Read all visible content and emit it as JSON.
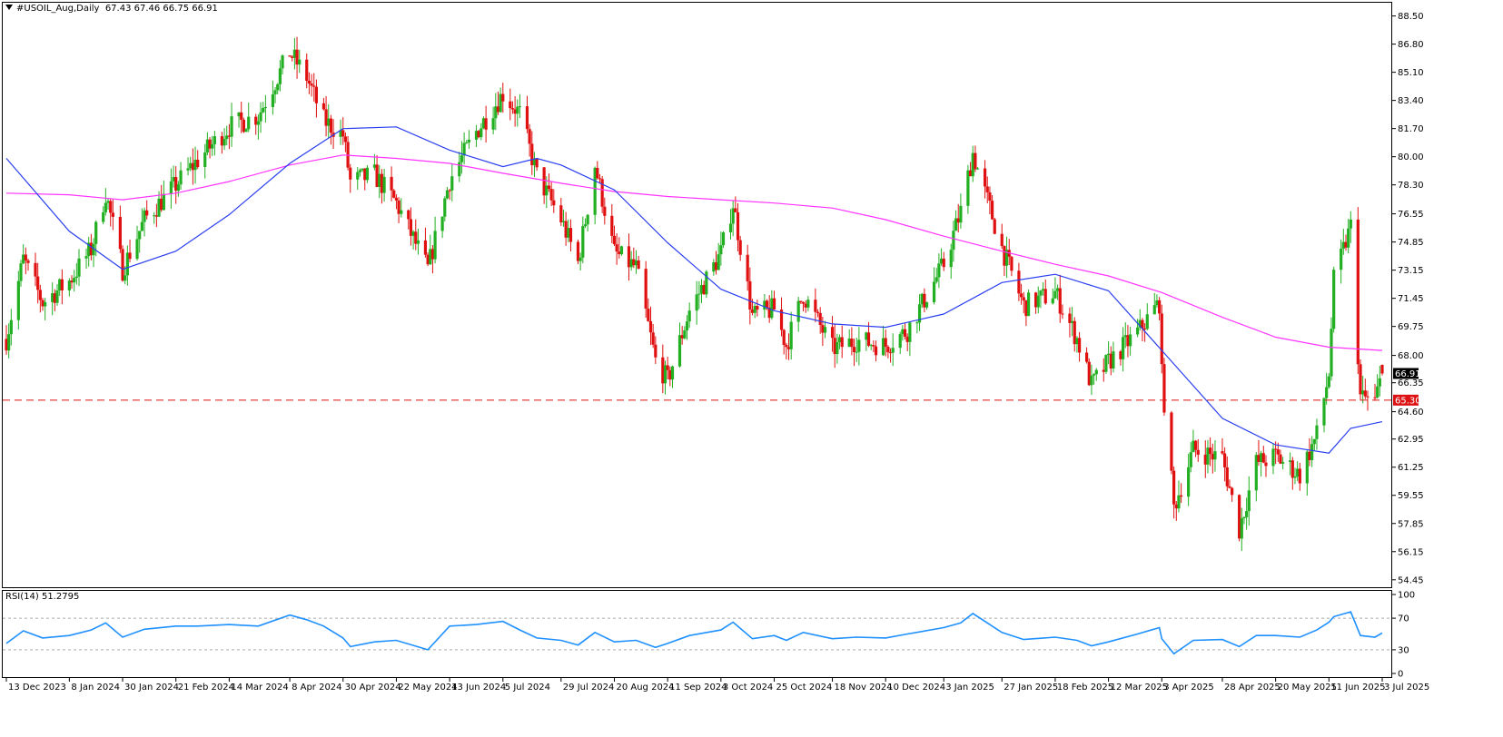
{
  "header": {
    "symbol": "#USOIL_Aug,Daily",
    "ohlc": "67.43 67.46 66.75 66.91"
  },
  "rsi_panel": {
    "label": "RSI(14) 51.2795"
  },
  "price_tags": {
    "last": "66.91",
    "level": "65.30"
  },
  "colors": {
    "bull": "#22b022",
    "bear": "#e01010",
    "ma_fast": "#2a3ff0",
    "ma_slow": "#ff33ff",
    "rsi": "#1e90ff",
    "level_line": "#dd1111"
  },
  "chart_data": [
    {
      "type": "candlestick",
      "title": "#USOIL_Aug,Daily",
      "x_axis_labels": [
        "13 Dec 2023",
        "8 Jan 2024",
        "30 Jan 2024",
        "21 Feb 2024",
        "14 Mar 2024",
        "8 Apr 2024",
        "30 Apr 2024",
        "22 May 2024",
        "13 Jun 2024",
        "5 Jul 2024",
        "29 Jul 2024",
        "20 Aug 2024",
        "11 Sep 2024",
        "3 Oct 2024",
        "25 Oct 2024",
        "18 Nov 2024",
        "10 Dec 2024",
        "3 Jan 2025",
        "27 Jan 2025",
        "18 Feb 2025",
        "12 Mar 2025",
        "3 Apr 2025",
        "28 Apr 2025",
        "20 May 2025",
        "11 Jun 2025",
        "3 Jul 2025"
      ],
      "y_axis_ticks": [
        "88.50",
        "86.80",
        "85.10",
        "83.40",
        "81.70",
        "80.00",
        "78.30",
        "76.55",
        "74.85",
        "73.15",
        "71.45",
        "69.75",
        "68.00",
        "66.35",
        "64.60",
        "62.95",
        "61.25",
        "59.55",
        "57.85",
        "56.15",
        "54.45"
      ],
      "ylim": [
        54.0,
        89.3
      ],
      "horizontal_level": 65.3,
      "last_price": 66.91,
      "last_bar_ohlc": [
        67.43,
        67.46,
        66.75,
        66.91
      ],
      "close_path": [
        [
          "13 Dec 2023",
          69.0
        ],
        [
          "20 Dec 2023",
          73.8
        ],
        [
          "28 Dec 2023",
          71.2
        ],
        [
          "8 Jan 2024",
          72.5
        ],
        [
          "17 Jan 2024",
          74.4
        ],
        [
          "23 Jan 2024",
          77.8
        ],
        [
          "30 Jan 2024",
          73.2
        ],
        [
          "8 Feb 2024",
          76.2
        ],
        [
          "21 Feb 2024",
          78.3
        ],
        [
          "1 Mar 2024",
          79.8
        ],
        [
          "14 Mar 2024",
          81.8
        ],
        [
          "26 Mar 2024",
          82.5
        ],
        [
          "8 Apr 2024",
          86.3
        ],
        [
          "15 Apr 2024",
          84.8
        ],
        [
          "22 Apr 2024",
          82.2
        ],
        [
          "30 Apr 2024",
          81.3
        ],
        [
          "3 May 2024",
          78.5
        ],
        [
          "13 May 2024",
          78.9
        ],
        [
          "22 May 2024",
          77.2
        ],
        [
          "4 Jun 2024",
          73.2
        ],
        [
          "13 Jun 2024",
          78.6
        ],
        [
          "24 Jun 2024",
          81.5
        ],
        [
          "5 Jul 2024",
          83.8
        ],
        [
          "12 Jul 2024",
          82.6
        ],
        [
          "19 Jul 2024",
          78.9
        ],
        [
          "29 Jul 2024",
          76.2
        ],
        [
          "5 Aug 2024",
          73.6
        ],
        [
          "12 Aug 2024",
          79.5
        ],
        [
          "20 Aug 2024",
          74.2
        ],
        [
          "29 Aug 2024",
          73.3
        ],
        [
          "6 Sep 2024",
          67.7
        ],
        [
          "11 Sep 2024",
          66.5
        ],
        [
          "20 Sep 2024",
          70.7
        ],
        [
          "3 Oct 2024",
          74.2
        ],
        [
          "8 Oct 2024",
          77.2
        ],
        [
          "16 Oct 2024",
          70.4
        ],
        [
          "25 Oct 2024",
          70.8
        ],
        [
          "30 Oct 2024",
          68.6
        ],
        [
          "6 Nov 2024",
          71.7
        ],
        [
          "18 Nov 2024",
          68.4
        ],
        [
          "28 Nov 2024",
          68.9
        ],
        [
          "10 Dec 2024",
          68.6
        ],
        [
          "19 Dec 2024",
          69.5
        ],
        [
          "3 Jan 2025",
          73.5
        ],
        [
          "10 Jan 2025",
          76.7
        ],
        [
          "15 Jan 2025",
          80.2
        ],
        [
          "27 Jan 2025",
          74.5
        ],
        [
          "5 Feb 2025",
          71.0
        ],
        [
          "18 Feb 2025",
          71.8
        ],
        [
          "27 Feb 2025",
          69.0
        ],
        [
          "5 Mar 2025",
          66.2
        ],
        [
          "12 Mar 2025",
          67.6
        ],
        [
          "24 Mar 2025",
          69.4
        ],
        [
          "2 Apr 2025",
          71.2
        ],
        [
          "3 Apr 2025",
          66.8
        ],
        [
          "8 Apr 2025",
          58.8
        ],
        [
          "16 Apr 2025",
          62.3
        ],
        [
          "28 Apr 2025",
          61.8
        ],
        [
          "5 May 2025",
          57.5
        ],
        [
          "12 May 2025",
          61.5
        ],
        [
          "20 May 2025",
          61.9
        ],
        [
          "30 May 2025",
          60.8
        ],
        [
          "6 Jun 2025",
          63.2
        ],
        [
          "11 Jun 2025",
          66.9
        ],
        [
          "13 Jun 2025",
          72.5
        ],
        [
          "20 Jun 2025",
          75.8
        ],
        [
          "24 Jun 2025",
          65.5
        ],
        [
          "30 Jun 2025",
          65.2
        ],
        [
          "3 Jul 2025",
          66.91
        ]
      ],
      "ma_fast_path": [
        [
          "13 Dec 2023",
          79.9
        ],
        [
          "8 Jan 2024",
          75.5
        ],
        [
          "30 Jan 2024",
          73.2
        ],
        [
          "21 Feb 2024",
          74.3
        ],
        [
          "14 Mar 2024",
          76.5
        ],
        [
          "8 Apr 2024",
          79.6
        ],
        [
          "30 Apr 2024",
          81.7
        ],
        [
          "22 May 2024",
          81.8
        ],
        [
          "13 Jun 2024",
          80.4
        ],
        [
          "5 Jul 2024",
          79.4
        ],
        [
          "19 Jul 2024",
          79.9
        ],
        [
          "29 Jul 2024",
          79.5
        ],
        [
          "20 Aug 2024",
          78.0
        ],
        [
          "11 Sep 2024",
          74.8
        ],
        [
          "3 Oct 2024",
          72.0
        ],
        [
          "25 Oct 2024",
          70.7
        ],
        [
          "18 Nov 2024",
          69.9
        ],
        [
          "10 Dec 2024",
          69.7
        ],
        [
          "3 Jan 2025",
          70.5
        ],
        [
          "27 Jan 2025",
          72.4
        ],
        [
          "18 Feb 2025",
          72.9
        ],
        [
          "12 Mar 2025",
          71.9
        ],
        [
          "3 Apr 2025",
          68.3
        ],
        [
          "28 Apr 2025",
          64.2
        ],
        [
          "20 May 2025",
          62.6
        ],
        [
          "11 Jun 2025",
          62.1
        ],
        [
          "20 Jun 2025",
          63.6
        ],
        [
          "3 Jul 2025",
          64.0
        ]
      ],
      "ma_slow_path": [
        [
          "13 Dec 2023",
          77.8
        ],
        [
          "8 Jan 2024",
          77.7
        ],
        [
          "30 Jan 2024",
          77.4
        ],
        [
          "21 Feb 2024",
          77.8
        ],
        [
          "14 Mar 2024",
          78.5
        ],
        [
          "8 Apr 2024",
          79.5
        ],
        [
          "30 Apr 2024",
          80.1
        ],
        [
          "22 May 2024",
          79.9
        ],
        [
          "13 Jun 2024",
          79.6
        ],
        [
          "5 Jul 2024",
          79.0
        ],
        [
          "29 Jul 2024",
          78.4
        ],
        [
          "20 Aug 2024",
          77.9
        ],
        [
          "11 Sep 2024",
          77.6
        ],
        [
          "3 Oct 2024",
          77.4
        ],
        [
          "25 Oct 2024",
          77.2
        ],
        [
          "18 Nov 2024",
          76.9
        ],
        [
          "10 Dec 2024",
          76.2
        ],
        [
          "3 Jan 2025",
          75.2
        ],
        [
          "27 Jan 2025",
          74.3
        ],
        [
          "18 Feb 2025",
          73.5
        ],
        [
          "12 Mar 2025",
          72.8
        ],
        [
          "3 Apr 2025",
          71.8
        ],
        [
          "28 Apr 2025",
          70.3
        ],
        [
          "20 May 2025",
          69.1
        ],
        [
          "11 Jun 2025",
          68.5
        ],
        [
          "3 Jul 2025",
          68.3
        ]
      ]
    },
    {
      "type": "line",
      "title": "RSI(14) 51.2795",
      "y_axis_ticks": [
        "100",
        "70",
        "30",
        "0"
      ],
      "ylim": [
        0,
        100
      ],
      "reference_levels": [
        70,
        30
      ],
      "last_value": 51.2795,
      "series": [
        {
          "values": [
            [
              "13 Dec 2023",
              38
            ],
            [
              "20 Dec 2023",
              54
            ],
            [
              "28 Dec 2023",
              45
            ],
            [
              "8 Jan 2024",
              48
            ],
            [
              "17 Jan 2024",
              55
            ],
            [
              "23 Jan 2024",
              64
            ],
            [
              "30 Jan 2024",
              46
            ],
            [
              "8 Feb 2024",
              56
            ],
            [
              "21 Feb 2024",
              60
            ],
            [
              "1 Mar 2024",
              60
            ],
            [
              "14 Mar 2024",
              62
            ],
            [
              "26 Mar 2024",
              60
            ],
            [
              "8 Apr 2024",
              74
            ],
            [
              "15 Apr 2024",
              68
            ],
            [
              "22 Apr 2024",
              60
            ],
            [
              "30 Apr 2024",
              45
            ],
            [
              "3 May 2024",
              34
            ],
            [
              "13 May 2024",
              40
            ],
            [
              "22 May 2024",
              42
            ],
            [
              "4 Jun 2024",
              30
            ],
            [
              "13 Jun 2024",
              60
            ],
            [
              "24 Jun 2024",
              62
            ],
            [
              "5 Jul 2024",
              66
            ],
            [
              "12 Jul 2024",
              55
            ],
            [
              "19 Jul 2024",
              45
            ],
            [
              "29 Jul 2024",
              42
            ],
            [
              "5 Aug 2024",
              36
            ],
            [
              "12 Aug 2024",
              52
            ],
            [
              "20 Aug 2024",
              40
            ],
            [
              "29 Aug 2024",
              42
            ],
            [
              "6 Sep 2024",
              33
            ],
            [
              "11 Sep 2024",
              38
            ],
            [
              "20 Sep 2024",
              48
            ],
            [
              "3 Oct 2024",
              55
            ],
            [
              "8 Oct 2024",
              65
            ],
            [
              "16 Oct 2024",
              44
            ],
            [
              "25 Oct 2024",
              48
            ],
            [
              "30 Oct 2024",
              42
            ],
            [
              "6 Nov 2024",
              52
            ],
            [
              "18 Nov 2024",
              44
            ],
            [
              "28 Nov 2024",
              46
            ],
            [
              "10 Dec 2024",
              45
            ],
            [
              "19 Dec 2024",
              50
            ],
            [
              "3 Jan 2025",
              58
            ],
            [
              "10 Jan 2025",
              64
            ],
            [
              "15 Jan 2025",
              76
            ],
            [
              "27 Jan 2025",
              52
            ],
            [
              "5 Feb 2025",
              43
            ],
            [
              "18 Feb 2025",
              46
            ],
            [
              "27 Feb 2025",
              42
            ],
            [
              "5 Mar 2025",
              35
            ],
            [
              "12 Mar 2025",
              40
            ],
            [
              "24 Mar 2025",
              50
            ],
            [
              "2 Apr 2025",
              58
            ],
            [
              "3 Apr 2025",
              44
            ],
            [
              "8 Apr 2025",
              25
            ],
            [
              "16 Apr 2025",
              42
            ],
            [
              "28 Apr 2025",
              43
            ],
            [
              "5 May 2025",
              34
            ],
            [
              "12 May 2025",
              48
            ],
            [
              "20 May 2025",
              48
            ],
            [
              "30 May 2025",
              46
            ],
            [
              "6 Jun 2025",
              55
            ],
            [
              "11 Jun 2025",
              65
            ],
            [
              "13 Jun 2025",
              72
            ],
            [
              "20 Jun 2025",
              78
            ],
            [
              "24 Jun 2025",
              48
            ],
            [
              "30 Jun 2025",
              46
            ],
            [
              "3 Jul 2025",
              51.3
            ]
          ]
        }
      ]
    }
  ]
}
